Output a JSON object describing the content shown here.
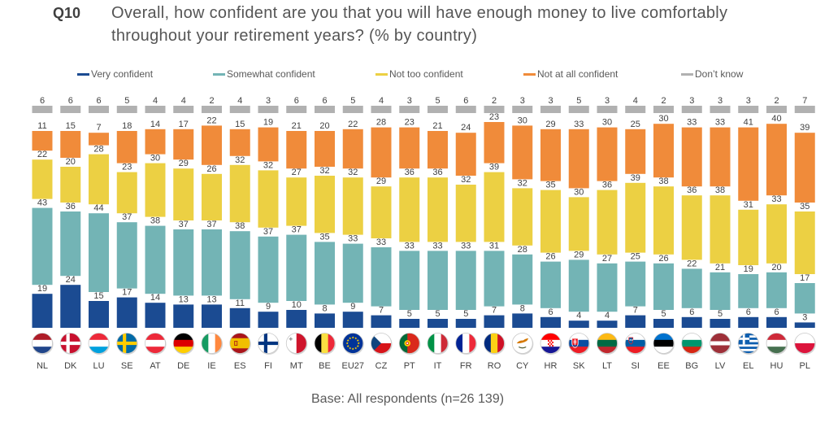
{
  "header": {
    "question_number": "Q10"
  },
  "chart_data": {
    "type": "bar",
    "stacked": true,
    "data_labels": true,
    "grid": false,
    "legend_position": "top",
    "title": "Overall, how confident are you that you will have enough money to live comfortably throughout your retirement years? (% by country)",
    "categories": [
      "NL",
      "DK",
      "LU",
      "SE",
      "AT",
      "DE",
      "IE",
      "ES",
      "FI",
      "MT",
      "BE",
      "EU27",
      "CZ",
      "PT",
      "IT",
      "FR",
      "RO",
      "CY",
      "HR",
      "SK",
      "LT",
      "SI",
      "EE",
      "BG",
      "LV",
      "EL",
      "HU",
      "PL"
    ],
    "category_flag_icons": [
      "netherlands-flag-icon",
      "denmark-flag-icon",
      "luxembourg-flag-icon",
      "sweden-flag-icon",
      "austria-flag-icon",
      "germany-flag-icon",
      "ireland-flag-icon",
      "spain-flag-icon",
      "finland-flag-icon",
      "malta-flag-icon",
      "belgium-flag-icon",
      "european-union-flag-icon",
      "czechia-flag-icon",
      "portugal-flag-icon",
      "italy-flag-icon",
      "france-flag-icon",
      "romania-flag-icon",
      "cyprus-flag-icon",
      "croatia-flag-icon",
      "slovakia-flag-icon",
      "lithuania-flag-icon",
      "slovenia-flag-icon",
      "estonia-flag-icon",
      "bulgaria-flag-icon",
      "latvia-flag-icon",
      "greece-flag-icon",
      "hungary-flag-icon",
      "poland-flag-icon"
    ],
    "series": [
      {
        "name": "Very confident",
        "color": "#1b4b92",
        "values": [
          19,
          24,
          15,
          17,
          14,
          13,
          13,
          11,
          9,
          10,
          8,
          9,
          7,
          5,
          5,
          5,
          7,
          8,
          6,
          4,
          4,
          7,
          5,
          6,
          5,
          6,
          6,
          3
        ]
      },
      {
        "name": "Somewhat confident",
        "color": "#73b4b5",
        "values": [
          43,
          36,
          44,
          37,
          38,
          37,
          37,
          38,
          37,
          37,
          35,
          33,
          33,
          33,
          33,
          33,
          31,
          28,
          26,
          29,
          27,
          25,
          26,
          22,
          21,
          19,
          20,
          17
        ]
      },
      {
        "name": "Not too confident",
        "color": "#ecd043",
        "values": [
          22,
          20,
          28,
          23,
          30,
          29,
          26,
          32,
          32,
          27,
          32,
          32,
          29,
          36,
          36,
          32,
          39,
          32,
          35,
          30,
          36,
          39,
          38,
          36,
          38,
          31,
          33,
          35
        ]
      },
      {
        "name": "Not at all confident",
        "color": "#f08b3a",
        "values": [
          11,
          15,
          7,
          18,
          14,
          17,
          22,
          15,
          19,
          21,
          20,
          22,
          28,
          23,
          21,
          24,
          23,
          30,
          29,
          33,
          30,
          25,
          30,
          33,
          33,
          41,
          40,
          39
        ]
      },
      {
        "name": "Don’t know",
        "color": "#b1b1b1",
        "values": [
          6,
          6,
          6,
          5,
          4,
          4,
          2,
          4,
          3,
          6,
          6,
          5,
          4,
          3,
          5,
          6,
          2,
          3,
          3,
          5,
          3,
          4,
          2,
          3,
          3,
          3,
          2,
          7
        ]
      }
    ]
  },
  "footer": {
    "base_note": "Base: All respondents (n=26 139)"
  }
}
